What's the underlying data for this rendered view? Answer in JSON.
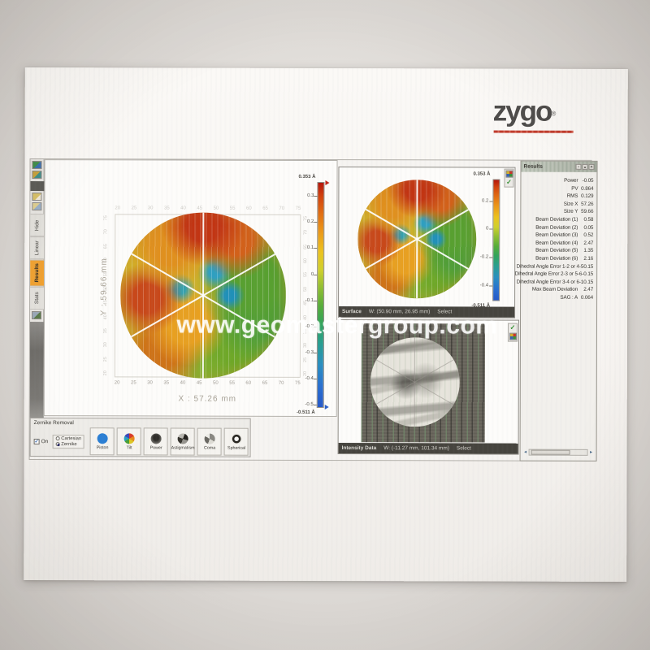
{
  "brand": {
    "logo": "zygo",
    "reg": "®",
    "accent_color": "#c03a2b"
  },
  "watermark": {
    "text": "www.geomastergroup.com"
  },
  "icons": {
    "check": "✓",
    "scroll_left": "◄",
    "scroll_right": "►",
    "titlebar_glyphs": [
      "▪",
      "▴",
      "✕"
    ]
  },
  "toolbar": {
    "tabs": [
      {
        "label": "Hide",
        "active": false
      },
      {
        "label": "Linear",
        "active": false
      },
      {
        "label": "Results",
        "active": true
      },
      {
        "label": "Stats",
        "active": false
      }
    ]
  },
  "left_plot": {
    "x_label": "X : 57.26 mm",
    "y_label": "Y : 59.66 mm",
    "x_ticks": [
      "20",
      "25",
      "30",
      "35",
      "40",
      "45",
      "50",
      "55",
      "60",
      "65",
      "70",
      "75"
    ],
    "y_ticks": [
      "75",
      "70",
      "65",
      "60",
      "55",
      "50",
      "45",
      "40",
      "35",
      "30",
      "25",
      "20"
    ],
    "colorbar": {
      "max_label": "0.353 Å",
      "min_label": "-0.511 Å",
      "max_value": 0.353,
      "min_value": -0.511,
      "ticks": [
        "0.3",
        "0.2",
        "0.1",
        "0",
        "-0.1",
        "-0.2",
        "-0.3",
        "-0.4",
        "-0.5"
      ]
    }
  },
  "surface_window": {
    "status": {
      "title": "Surface",
      "coords": "W: (50.90 mm, 26.95 mm)",
      "action": "Select"
    },
    "colorbar": {
      "max_label": "0.353 Å",
      "min_label": "-0.511 Å",
      "max_value": 0.353,
      "min_value": -0.511,
      "ticks": [
        "0.2",
        "0",
        "-0.2",
        "-0.4"
      ]
    }
  },
  "intensity_window": {
    "status": {
      "title": "Intensity Data",
      "coords": "W: (-11.27 mm, 101.34 mm)",
      "action": "Select"
    }
  },
  "results": {
    "title": "Results",
    "rows": [
      {
        "label": "Power",
        "value": "-0.05"
      },
      {
        "label": "PV",
        "value": "0.864"
      },
      {
        "label": "RMS",
        "value": "0.129"
      },
      {
        "label": "Size X",
        "value": "57.26"
      },
      {
        "label": "Size Y",
        "value": "59.66"
      },
      {
        "label": "Beam Deviation (1)",
        "value": "0.58"
      },
      {
        "label": "Beam Deviation (2)",
        "value": "0.05"
      },
      {
        "label": "Beam Deviation (3)",
        "value": "0.52"
      },
      {
        "label": "Beam Deviation (4)",
        "value": "2.47"
      },
      {
        "label": "Beam Deviation (5)",
        "value": "1.35"
      },
      {
        "label": "Beam Deviation (6)",
        "value": "2.16"
      },
      {
        "label": "Dihedral Angle Error 1-2 or 4-5",
        "value": "0.15"
      },
      {
        "label": "Dihedral Angle Error 2-3 or 5-6",
        "value": "-0.15"
      },
      {
        "label": "Dihedral Angle Error 3-4 or 6-1",
        "value": "0.15"
      },
      {
        "label": "Max Beam Deviation",
        "value": "2.47"
      },
      {
        "label": "SAG : A",
        "value": "0.064"
      }
    ]
  },
  "zernike": {
    "title": "Zernike Removal",
    "on_label": "On",
    "modes": [
      "Cartesian",
      "Zernike"
    ],
    "selected_mode": "Zernike",
    "buttons": [
      {
        "label": "Piston",
        "icon": "ic-piston"
      },
      {
        "label": "Tilt",
        "icon": "ic-tilt"
      },
      {
        "label": "Power",
        "icon": "ic-power"
      },
      {
        "label": "Astigmatism",
        "icon": "ic-astig"
      },
      {
        "label": "Coma",
        "icon": "ic-coma"
      },
      {
        "label": "Spherical",
        "icon": "ic-spherical"
      }
    ]
  }
}
